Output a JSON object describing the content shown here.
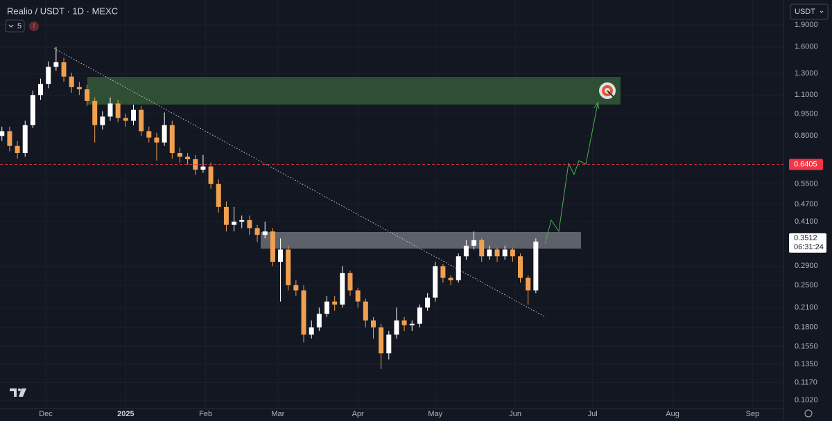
{
  "chart_data": {
    "type": "candlestick",
    "title": "Realio / USDT · 1D · MEXC",
    "indicator": "5",
    "currency": "USDT",
    "log_scale": true,
    "up_color": "#ffffff",
    "down_color": "#f0a050",
    "x": [
      -17,
      -14,
      -11,
      -8,
      -5,
      -2,
      1,
      4,
      7,
      10,
      13,
      16,
      19,
      22,
      25,
      28,
      31,
      34,
      37,
      40,
      43,
      46,
      49,
      52,
      55,
      58,
      61,
      64,
      67,
      70,
      73,
      76,
      79,
      82,
      85,
      88,
      91,
      94,
      97,
      100,
      103,
      106,
      109,
      112,
      115,
      118,
      121,
      124,
      127,
      130,
      133,
      136,
      139,
      142,
      145,
      148,
      151,
      154,
      157,
      160,
      163,
      166,
      169,
      172,
      175,
      178,
      181,
      184,
      187,
      190
    ],
    "open": [
      0.8,
      0.83,
      0.74,
      0.7,
      0.87,
      1.1,
      1.2,
      1.37,
      1.42,
      1.27,
      1.17,
      1.15,
      1.05,
      0.87,
      0.93,
      1.03,
      0.92,
      0.9,
      0.98,
      0.83,
      0.79,
      0.76,
      0.87,
      0.7,
      0.68,
      0.667,
      0.615,
      0.63,
      0.55,
      0.46,
      0.4,
      0.41,
      0.415,
      0.39,
      0.37,
      0.38,
      0.3,
      0.33,
      0.25,
      0.24,
      0.17,
      0.18,
      0.2,
      0.22,
      0.215,
      0.275,
      0.24,
      0.22,
      0.19,
      0.18,
      0.147,
      0.17,
      0.19,
      0.183,
      0.185,
      0.21,
      0.227,
      0.29,
      0.265,
      0.26,
      0.313,
      0.34,
      0.355,
      0.313,
      0.33,
      0.313,
      0.33,
      0.313,
      0.265,
      0.24
    ],
    "high": [
      0.86,
      0.86,
      0.77,
      0.9,
      1.14,
      1.25,
      1.43,
      1.6,
      1.47,
      1.31,
      1.22,
      1.19,
      1.08,
      0.97,
      1.08,
      1.06,
      0.95,
      1.02,
      1.01,
      0.86,
      0.82,
      0.96,
      0.9,
      0.73,
      0.7,
      0.69,
      0.69,
      0.65,
      0.57,
      0.48,
      0.46,
      0.43,
      0.43,
      0.4,
      0.41,
      0.39,
      0.36,
      0.34,
      0.26,
      0.25,
      0.19,
      0.21,
      0.23,
      0.23,
      0.29,
      0.28,
      0.245,
      0.225,
      0.195,
      0.185,
      0.175,
      0.21,
      0.195,
      0.19,
      0.215,
      0.235,
      0.3,
      0.295,
      0.27,
      0.32,
      0.355,
      0.38,
      0.36,
      0.34,
      0.335,
      0.34,
      0.335,
      0.32,
      0.27,
      0.36
    ],
    "low": [
      0.77,
      0.71,
      0.67,
      0.68,
      0.85,
      1.06,
      1.16,
      1.33,
      1.22,
      1.12,
      1.1,
      1.01,
      0.76,
      0.84,
      0.9,
      0.89,
      0.86,
      0.87,
      0.8,
      0.76,
      0.66,
      0.74,
      0.67,
      0.65,
      0.64,
      0.59,
      0.6,
      0.53,
      0.44,
      0.38,
      0.38,
      0.39,
      0.37,
      0.35,
      0.36,
      0.29,
      0.22,
      0.24,
      0.23,
      0.16,
      0.165,
      0.175,
      0.195,
      0.205,
      0.21,
      0.23,
      0.21,
      0.18,
      0.165,
      0.13,
      0.14,
      0.165,
      0.175,
      0.175,
      0.18,
      0.205,
      0.22,
      0.255,
      0.25,
      0.255,
      0.305,
      0.33,
      0.3,
      0.305,
      0.3,
      0.305,
      0.3,
      0.255,
      0.215,
      0.235
    ],
    "close": [
      0.83,
      0.74,
      0.7,
      0.87,
      1.1,
      1.2,
      1.37,
      1.42,
      1.27,
      1.17,
      1.15,
      1.05,
      0.87,
      0.93,
      1.03,
      0.92,
      0.9,
      0.98,
      0.83,
      0.79,
      0.76,
      0.87,
      0.7,
      0.68,
      0.667,
      0.615,
      0.63,
      0.55,
      0.46,
      0.4,
      0.41,
      0.415,
      0.39,
      0.37,
      0.38,
      0.3,
      0.33,
      0.25,
      0.24,
      0.17,
      0.18,
      0.2,
      0.22,
      0.215,
      0.275,
      0.24,
      0.22,
      0.19,
      0.18,
      0.147,
      0.17,
      0.19,
      0.183,
      0.185,
      0.21,
      0.227,
      0.29,
      0.265,
      0.26,
      0.313,
      0.34,
      0.355,
      0.313,
      0.33,
      0.313,
      0.33,
      0.313,
      0.265,
      0.24,
      0.3512
    ],
    "xlim": [
      -17.74,
      286
    ],
    "xticks": [
      {
        "value": 0,
        "label": "Dec"
      },
      {
        "value": 31,
        "label": "2025"
      },
      {
        "value": 62,
        "label": "Feb"
      },
      {
        "value": 90,
        "label": "Mar"
      },
      {
        "value": 121,
        "label": "Apr"
      },
      {
        "value": 151,
        "label": "May"
      },
      {
        "value": 182,
        "label": "Jun"
      },
      {
        "value": 212,
        "label": "Jul"
      },
      {
        "value": 243,
        "label": "Aug"
      },
      {
        "value": 274,
        "label": "Sep"
      }
    ],
    "ylim": [
      0.0956,
      2.307
    ],
    "yticks": [
      {
        "value": 1.9,
        "label": "1.9000"
      },
      {
        "value": 1.6,
        "label": "1.6000"
      },
      {
        "value": 1.3,
        "label": "1.3000"
      },
      {
        "value": 1.1,
        "label": "1.1000"
      },
      {
        "value": 0.95,
        "label": "0.9500"
      },
      {
        "value": 0.8,
        "label": "0.8000"
      },
      {
        "value": 0.55,
        "label": "0.5500"
      },
      {
        "value": 0.47,
        "label": "0.4700"
      },
      {
        "value": 0.41,
        "label": "0.4100"
      },
      {
        "value": 0.29,
        "label": "0.2900"
      },
      {
        "value": 0.25,
        "label": "0.2500"
      },
      {
        "value": 0.21,
        "label": "0.2100"
      },
      {
        "value": 0.18,
        "label": "0.1800"
      },
      {
        "value": 0.155,
        "label": "0.1550"
      },
      {
        "value": 0.135,
        "label": "0.1350"
      },
      {
        "value": 0.117,
        "label": "0.1170"
      },
      {
        "value": 0.102,
        "label": "0.1020"
      }
    ],
    "price_line": {
      "value": 0.6405,
      "label": "0.6405",
      "color": "#f23645"
    },
    "last_price": {
      "value": 0.3512,
      "label": "0.3512"
    },
    "countdown": "06:31:24"
  }
}
